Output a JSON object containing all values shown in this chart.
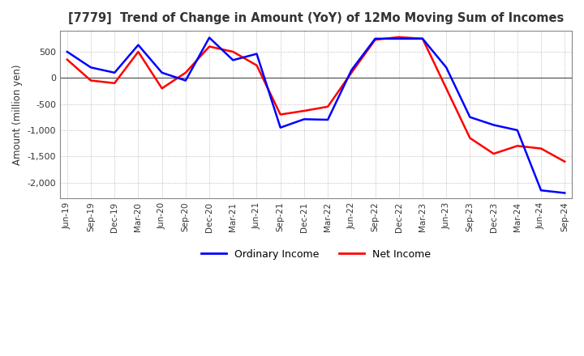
{
  "title": "[7779]  Trend of Change in Amount (YoY) of 12Mo Moving Sum of Incomes",
  "ylabel": "Amount (million yen)",
  "ylim": [
    -2300,
    900
  ],
  "yticks": [
    500,
    0,
    -500,
    -1000,
    -1500,
    -2000
  ],
  "background_color": "#ffffff",
  "grid_color": "#aaaaaa",
  "labels": [
    "Jun-19",
    "Sep-19",
    "Dec-19",
    "Mar-20",
    "Jun-20",
    "Sep-20",
    "Dec-20",
    "Mar-21",
    "Jun-21",
    "Sep-21",
    "Dec-21",
    "Mar-22",
    "Jun-22",
    "Sep-22",
    "Dec-22",
    "Mar-23",
    "Jun-23",
    "Sep-23",
    "Dec-23",
    "Mar-24",
    "Jun-24",
    "Sep-24"
  ],
  "ordinary_income": [
    500,
    200,
    100,
    630,
    100,
    -50,
    770,
    340,
    460,
    -950,
    -790,
    -800,
    150,
    750,
    750,
    750,
    200,
    -750,
    -900,
    -1000,
    -2150,
    -2200
  ],
  "net_income": [
    350,
    -50,
    -100,
    500,
    -200,
    100,
    600,
    500,
    240,
    -700,
    -630,
    -550,
    100,
    730,
    780,
    750,
    -200,
    -1150,
    -1450,
    -1300,
    -1350,
    -1600
  ],
  "ordinary_color": "#0000ff",
  "net_color": "#ff0000",
  "legend_labels": [
    "Ordinary Income",
    "Net Income"
  ]
}
